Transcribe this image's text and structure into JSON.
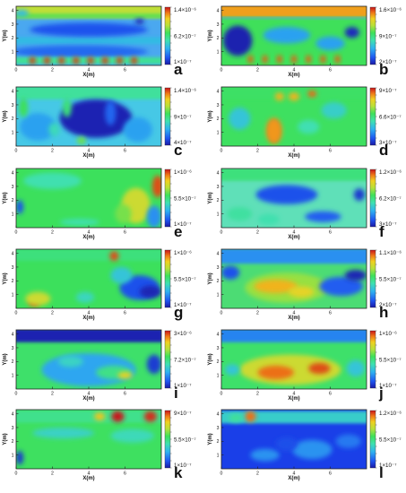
{
  "figure": {
    "panels": [
      {
        "letter": "a",
        "cb_top": "1.4×10⁻⁶",
        "cb_mid": "6.2×10⁻⁷",
        "cb_bot": "1×10⁻⁷"
      },
      {
        "letter": "b",
        "cb_top": "1.6×10⁻⁶",
        "cb_mid": "9×10⁻⁷",
        "cb_bot": "2×10⁻⁷"
      },
      {
        "letter": "c",
        "cb_top": "1.4×10⁻⁶",
        "cb_mid": "9×10⁻⁷",
        "cb_bot": "4×10⁻⁷"
      },
      {
        "letter": "d",
        "cb_top": "9×10⁻⁷",
        "cb_mid": "6.6×10⁻⁷",
        "cb_bot": "3×10⁻⁷"
      },
      {
        "letter": "e",
        "cb_top": "1×10⁻⁶",
        "cb_mid": "5.5×10⁻⁷",
        "cb_bot": "1×10⁻⁷"
      },
      {
        "letter": "f",
        "cb_top": "1.2×10⁻⁶",
        "cb_mid": "6.2×10⁻⁷",
        "cb_bot": "3×10⁻⁷"
      },
      {
        "letter": "g",
        "cb_top": "1×10⁻⁶",
        "cb_mid": "5.5×10⁻⁷",
        "cb_bot": "1×10⁻⁷"
      },
      {
        "letter": "h",
        "cb_top": "1.1×10⁻⁶",
        "cb_mid": "5.5×10⁻⁷",
        "cb_bot": "2×10⁻⁷"
      },
      {
        "letter": "i",
        "cb_top": "3×10⁻⁶",
        "cb_mid": "7.2×10⁻⁷",
        "cb_bot": "1×10⁻⁷"
      },
      {
        "letter": "j",
        "cb_top": "1×10⁻⁶",
        "cb_mid": "5.5×10⁻⁷",
        "cb_bot": "1×10⁻⁷"
      },
      {
        "letter": "k",
        "cb_top": "9×10⁻⁷",
        "cb_mid": "5.5×10⁻⁷",
        "cb_bot": "1×10⁻⁷"
      },
      {
        "letter": "l",
        "cb_top": "1.2×10⁻⁶",
        "cb_mid": "5.5×10⁻⁷",
        "cb_bot": "1×10⁻⁷"
      }
    ]
  },
  "chart_data": {
    "type": "heatmap",
    "xlabel": "X(m)",
    "ylabel": "Y(m)",
    "xlim": [
      0,
      8
    ],
    "ylim": [
      0,
      4.3
    ],
    "x_ticks": [
      0,
      2,
      4,
      6
    ],
    "y_ticks": [
      1,
      2,
      3,
      4
    ],
    "panels": [
      {
        "label": "a",
        "colorbar": [
          1.4e-06,
          6.2e-07,
          1e-07
        ],
        "background": "#4aa8f0",
        "features": [
          {
            "x": 4,
            "y": 4,
            "value": 1e-06,
            "w": 8.2,
            "h": 1.1,
            "kind": "band"
          },
          {
            "x": 4,
            "y": 3.6,
            "value": 8.5e-07,
            "w": 8.2,
            "h": 0.3,
            "kind": "band"
          },
          {
            "x": 4,
            "y": 1.8,
            "value": 5e-07,
            "w": 8.2,
            "h": 0.5,
            "kind": "band"
          },
          {
            "x": 4,
            "y": 2.6,
            "value": 2.5e-07,
            "w": 6.5,
            "h": 1.0
          },
          {
            "x": 3.5,
            "y": 1.0,
            "value": 3e-07,
            "w": 7.5,
            "h": 0.9
          },
          {
            "x": 0.3,
            "y": 3.8,
            "value": 5e-07,
            "w": 0.8,
            "h": 0.5
          },
          {
            "x": 6.8,
            "y": 3.2,
            "value": 1.2e-07,
            "w": 0.5,
            "h": 0.4
          },
          {
            "x": 4,
            "y": 0.35,
            "value": 7e-07,
            "w": 8.2,
            "h": 0.5,
            "kind": "band"
          },
          {
            "x": 0.9,
            "y": 0.35,
            "value": 1.35e-06,
            "w": 0.35,
            "h": 0.55
          },
          {
            "x": 1.7,
            "y": 0.35,
            "value": 1.35e-06,
            "w": 0.35,
            "h": 0.55
          },
          {
            "x": 2.5,
            "y": 0.35,
            "value": 1.35e-06,
            "w": 0.35,
            "h": 0.55
          },
          {
            "x": 3.3,
            "y": 0.35,
            "value": 1.35e-06,
            "w": 0.35,
            "h": 0.55
          },
          {
            "x": 4.1,
            "y": 0.35,
            "value": 1.35e-06,
            "w": 0.35,
            "h": 0.55
          },
          {
            "x": 4.9,
            "y": 0.35,
            "value": 1.35e-06,
            "w": 0.35,
            "h": 0.55
          },
          {
            "x": 5.7,
            "y": 0.35,
            "value": 1.35e-06,
            "w": 0.35,
            "h": 0.55
          },
          {
            "x": 6.5,
            "y": 0.35,
            "value": 1.35e-06,
            "w": 0.35,
            "h": 0.55
          }
        ]
      },
      {
        "label": "b",
        "colorbar": [
          1.6e-06,
          9e-07,
          2e-07
        ],
        "background": "#3fe05a",
        "features": [
          {
            "x": 4,
            "y": 4.0,
            "value": 1.4e-06,
            "w": 8.2,
            "h": 1.0,
            "kind": "band"
          },
          {
            "x": 4,
            "y": 3.45,
            "value": 6e-07,
            "w": 8.2,
            "h": 0.12,
            "kind": "band"
          },
          {
            "x": 0.9,
            "y": 1.8,
            "value": 2.2e-07,
            "w": 1.6,
            "h": 2.2
          },
          {
            "x": 3.6,
            "y": 2.2,
            "value": 5.5e-07,
            "w": 2.6,
            "h": 1.2
          },
          {
            "x": 6.0,
            "y": 1.6,
            "value": 5.5e-07,
            "w": 1.6,
            "h": 1.0
          },
          {
            "x": 7.2,
            "y": 2.4,
            "value": 2.5e-07,
            "w": 0.8,
            "h": 0.8
          },
          {
            "x": 1.6,
            "y": 0.45,
            "value": 1.5e-06,
            "w": 0.3,
            "h": 0.6
          },
          {
            "x": 2.4,
            "y": 0.45,
            "value": 1.5e-06,
            "w": 0.3,
            "h": 0.6
          },
          {
            "x": 3.2,
            "y": 0.45,
            "value": 1.5e-06,
            "w": 0.3,
            "h": 0.6
          },
          {
            "x": 4.0,
            "y": 0.45,
            "value": 1.5e-06,
            "w": 0.3,
            "h": 0.6
          },
          {
            "x": 4.8,
            "y": 0.45,
            "value": 1.5e-06,
            "w": 0.3,
            "h": 0.6
          },
          {
            "x": 5.6,
            "y": 0.45,
            "value": 1.5e-06,
            "w": 0.3,
            "h": 0.6
          },
          {
            "x": 6.4,
            "y": 0.45,
            "value": 1.5e-06,
            "w": 0.3,
            "h": 0.6
          }
        ]
      },
      {
        "label": "c",
        "colorbar": [
          1.4e-06,
          9e-07,
          4e-07
        ],
        "background": "#46c8e6",
        "features": [
          {
            "x": 4,
            "y": 3.9,
            "value": 8.5e-07,
            "w": 8.2,
            "h": 1.0,
            "kind": "band"
          },
          {
            "x": 4.4,
            "y": 2.0,
            "value": 4.2e-07,
            "w": 4.0,
            "h": 2.8
          },
          {
            "x": 1.2,
            "y": 1.4,
            "value": 6.5e-07,
            "w": 2.0,
            "h": 2.0
          },
          {
            "x": 6.7,
            "y": 1.2,
            "value": 6.5e-07,
            "w": 1.6,
            "h": 1.8
          },
          {
            "x": 2.8,
            "y": 2.8,
            "value": 9e-07,
            "w": 0.5,
            "h": 1.4
          },
          {
            "x": 0.4,
            "y": 2.8,
            "value": 9.5e-07,
            "w": 0.5,
            "h": 1.4
          },
          {
            "x": 3.6,
            "y": 0.4,
            "value": 1e-06,
            "w": 0.5,
            "h": 0.6
          },
          {
            "x": 2.1,
            "y": 1.2,
            "value": 8e-07,
            "w": 0.6,
            "h": 1.0
          },
          {
            "x": 5.2,
            "y": 2.4,
            "value": 5.5e-07,
            "w": 0.6,
            "h": 1.8
          }
        ]
      },
      {
        "label": "d",
        "colorbar": [
          9e-07,
          6.6e-07,
          3e-07
        ],
        "background": "#3ee060",
        "features": [
          {
            "x": 4,
            "y": 3.9,
            "value": 6.2e-07,
            "w": 8.2,
            "h": 0.9,
            "kind": "band"
          },
          {
            "x": 2.9,
            "y": 1.1,
            "value": 9e-07,
            "w": 0.45,
            "h": 1.4
          },
          {
            "x": 2.9,
            "y": 1.1,
            "value": 8.2e-07,
            "w": 0.9,
            "h": 1.9
          },
          {
            "x": 4.0,
            "y": 3.6,
            "value": 8e-07,
            "w": 0.6,
            "h": 0.6
          },
          {
            "x": 5.0,
            "y": 3.8,
            "value": 8.5e-07,
            "w": 0.5,
            "h": 0.5
          },
          {
            "x": 3.2,
            "y": 3.6,
            "value": 8e-07,
            "w": 0.5,
            "h": 0.6
          },
          {
            "x": 1.0,
            "y": 2.0,
            "value": 5e-07,
            "w": 1.2,
            "h": 1.6
          },
          {
            "x": 6.2,
            "y": 2.6,
            "value": 5.2e-07,
            "w": 1.4,
            "h": 1.2
          },
          {
            "x": 4.8,
            "y": 1.4,
            "value": 5.5e-07,
            "w": 1.2,
            "h": 1.0
          }
        ]
      },
      {
        "label": "e",
        "colorbar": [
          1e-06,
          5.5e-07,
          1e-07
        ],
        "background": "#3ce05c",
        "features": [
          {
            "x": 7.8,
            "y": 3.0,
            "value": 9.5e-07,
            "w": 0.6,
            "h": 1.6
          },
          {
            "x": 6.6,
            "y": 1.6,
            "value": 7.5e-07,
            "w": 1.6,
            "h": 2.6
          },
          {
            "x": 5.9,
            "y": 1.0,
            "value": 6.5e-07,
            "w": 0.9,
            "h": 1.4
          },
          {
            "x": 7.6,
            "y": 0.8,
            "value": 3e-07,
            "w": 0.8,
            "h": 1.6
          },
          {
            "x": 2.0,
            "y": 3.4,
            "value": 4.8e-07,
            "w": 3.2,
            "h": 1.2
          },
          {
            "x": 0.2,
            "y": 1.5,
            "value": 2e-07,
            "w": 0.4,
            "h": 1.0
          },
          {
            "x": 3.5,
            "y": 0.4,
            "value": 4.8e-07,
            "w": 2.2,
            "h": 0.5
          }
        ]
      },
      {
        "label": "f",
        "colorbar": [
          1.2e-06,
          6.2e-07,
          3e-07
        ],
        "background": "#5fe0b8",
        "features": [
          {
            "x": 4,
            "y": 3.9,
            "value": 7.5e-07,
            "w": 8.2,
            "h": 1.0,
            "kind": "band"
          },
          {
            "x": 3.6,
            "y": 2.4,
            "value": 4e-07,
            "w": 3.4,
            "h": 1.4
          },
          {
            "x": 5.6,
            "y": 0.8,
            "value": 4.2e-07,
            "w": 2.0,
            "h": 0.8
          },
          {
            "x": 7.6,
            "y": 2.4,
            "value": 3.6e-07,
            "w": 0.6,
            "h": 0.9
          },
          {
            "x": 1.0,
            "y": 1.0,
            "value": 7e-07,
            "w": 1.4,
            "h": 1.0
          },
          {
            "x": 2.6,
            "y": 0.6,
            "value": 6.8e-07,
            "w": 1.2,
            "h": 0.8
          }
        ]
      },
      {
        "label": "g",
        "colorbar": [
          1e-06,
          5.5e-07,
          1e-07
        ],
        "background": "#3ce05c",
        "features": [
          {
            "x": 4,
            "y": 3.9,
            "value": 5.5e-07,
            "w": 8.2,
            "h": 0.9,
            "kind": "band"
          },
          {
            "x": 6.8,
            "y": 1.5,
            "value": 2e-07,
            "w": 2.2,
            "h": 1.8
          },
          {
            "x": 7.4,
            "y": 1.2,
            "value": 1.2e-07,
            "w": 1.2,
            "h": 0.9
          },
          {
            "x": 5.8,
            "y": 2.4,
            "value": 4e-07,
            "w": 1.2,
            "h": 1.2
          },
          {
            "x": 5.4,
            "y": 3.8,
            "value": 9.5e-07,
            "w": 0.5,
            "h": 0.7
          },
          {
            "x": 1.0,
            "y": 0.4,
            "value": 9.5e-07,
            "w": 0.6,
            "h": 0.5
          },
          {
            "x": 1.2,
            "y": 0.7,
            "value": 7.5e-07,
            "w": 1.4,
            "h": 1.0
          },
          {
            "x": 3.8,
            "y": 0.8,
            "value": 4.5e-07,
            "w": 1.0,
            "h": 0.8
          }
        ]
      },
      {
        "label": "h",
        "colorbar": [
          1.1e-06,
          5.5e-07,
          2e-07
        ],
        "background": "#4cdc74",
        "features": [
          {
            "x": 4,
            "y": 3.8,
            "value": 4e-07,
            "w": 8.2,
            "h": 1.1,
            "kind": "band"
          },
          {
            "x": 3.6,
            "y": 1.5,
            "value": 7.8e-07,
            "w": 4.6,
            "h": 2.2
          },
          {
            "x": 3.0,
            "y": 1.6,
            "value": 9.5e-07,
            "w": 2.4,
            "h": 1.0
          },
          {
            "x": 4.4,
            "y": 1.2,
            "value": 9e-07,
            "w": 1.4,
            "h": 0.8
          },
          {
            "x": 6.6,
            "y": 1.6,
            "value": 3.2e-07,
            "w": 2.4,
            "h": 1.4
          },
          {
            "x": 7.4,
            "y": 2.4,
            "value": 2.2e-07,
            "w": 1.2,
            "h": 0.8
          },
          {
            "x": 0.5,
            "y": 2.6,
            "value": 3e-07,
            "w": 1.0,
            "h": 1.0
          }
        ]
      },
      {
        "label": "i",
        "colorbar": [
          3e-06,
          7.2e-07,
          1e-07
        ],
        "background": "#3ee06a",
        "features": [
          {
            "x": 4,
            "y": 3.9,
            "value": 1.5e-07,
            "w": 8.2,
            "h": 1.0,
            "kind": "band"
          },
          {
            "x": 4.0,
            "y": 1.4,
            "value": 8.5e-07,
            "w": 5.2,
            "h": 2.4
          },
          {
            "x": 5.4,
            "y": 1.2,
            "value": 1.5e-06,
            "w": 2.0,
            "h": 1.0
          },
          {
            "x": 6.0,
            "y": 1.0,
            "value": 2.4e-06,
            "w": 0.8,
            "h": 0.5
          },
          {
            "x": 3.0,
            "y": 2.0,
            "value": 1.2e-06,
            "w": 1.4,
            "h": 0.8
          },
          {
            "x": 7.6,
            "y": 1.8,
            "value": 3e-07,
            "w": 0.8,
            "h": 1.4
          }
        ]
      },
      {
        "label": "j",
        "colorbar": [
          1e-06,
          5.5e-07,
          1e-07
        ],
        "background": "#3ee06a",
        "features": [
          {
            "x": 4,
            "y": 3.9,
            "value": 2.8e-07,
            "w": 8.2,
            "h": 1.0,
            "kind": "band"
          },
          {
            "x": 3.8,
            "y": 1.4,
            "value": 7.5e-07,
            "w": 5.6,
            "h": 2.2
          },
          {
            "x": 3.0,
            "y": 1.2,
            "value": 9.2e-07,
            "w": 2.0,
            "h": 1.0
          },
          {
            "x": 5.4,
            "y": 1.5,
            "value": 9.5e-07,
            "w": 1.2,
            "h": 0.8
          },
          {
            "x": 7.4,
            "y": 1.5,
            "value": 4e-07,
            "w": 1.0,
            "h": 1.2
          },
          {
            "x": 0.6,
            "y": 1.4,
            "value": 4e-07,
            "w": 0.8,
            "h": 0.8
          }
        ]
      },
      {
        "label": "k",
        "colorbar": [
          9e-07,
          5.5e-07,
          1e-07
        ],
        "background": "#3ee060",
        "features": [
          {
            "x": 4,
            "y": 3.8,
            "value": 4.8e-07,
            "w": 8.2,
            "h": 0.9,
            "kind": "band"
          },
          {
            "x": 5.6,
            "y": 3.8,
            "value": 9e-07,
            "w": 0.7,
            "h": 0.8
          },
          {
            "x": 7.4,
            "y": 3.8,
            "value": 8.8e-07,
            "w": 0.7,
            "h": 0.8
          },
          {
            "x": 4.6,
            "y": 3.8,
            "value": 7.5e-07,
            "w": 0.6,
            "h": 0.6
          },
          {
            "x": 2.6,
            "y": 2.6,
            "value": 4e-07,
            "w": 3.4,
            "h": 0.8
          },
          {
            "x": 6.4,
            "y": 2.4,
            "value": 4.2e-07,
            "w": 2.4,
            "h": 1.0
          },
          {
            "x": 0.2,
            "y": 0.8,
            "value": 1.5e-07,
            "w": 0.4,
            "h": 1.0
          }
        ]
      },
      {
        "label": "l",
        "colorbar": [
          1.2e-06,
          5.5e-07,
          1e-07
        ],
        "background": "#1a3fe8",
        "features": [
          {
            "x": 4,
            "y": 3.75,
            "value": 5e-07,
            "w": 8.2,
            "h": 0.9,
            "kind": "band"
          },
          {
            "x": 1.6,
            "y": 3.8,
            "value": 1.1e-06,
            "w": 0.6,
            "h": 0.8
          },
          {
            "x": 0.8,
            "y": 3.7,
            "value": 6e-07,
            "w": 0.8,
            "h": 0.6
          },
          {
            "x": 2.4,
            "y": 1.0,
            "value": 3.5e-07,
            "w": 1.6,
            "h": 0.9
          },
          {
            "x": 5.0,
            "y": 1.4,
            "value": 3.5e-07,
            "w": 2.2,
            "h": 1.4
          },
          {
            "x": 7.0,
            "y": 2.0,
            "value": 3e-07,
            "w": 1.4,
            "h": 1.0
          },
          {
            "x": 3.6,
            "y": 1.8,
            "value": 2.2e-07,
            "w": 1.2,
            "h": 1.0
          }
        ]
      }
    ]
  }
}
